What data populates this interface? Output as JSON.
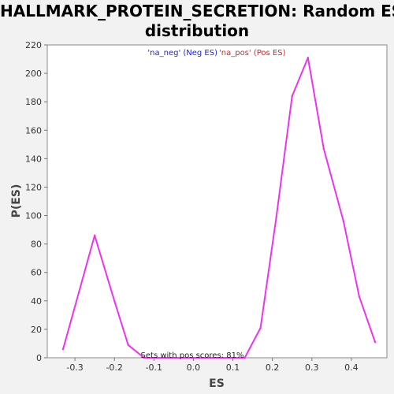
{
  "chart_data": {
    "type": "line",
    "title_line1": "HALLMARK_PROTEIN_SECRETION: Random ES",
    "title_line2": "distribution",
    "xlabel": "ES",
    "ylabel": "P(ES)",
    "xlim": [
      -0.37,
      0.49
    ],
    "ylim": [
      0,
      220
    ],
    "x_ticks": [
      -0.3,
      -0.2,
      -0.1,
      0.0,
      0.1,
      0.2,
      0.3,
      0.4
    ],
    "x_tick_labels": [
      "-0.3",
      "-0.2",
      "-0.1",
      "0.0",
      "0.1",
      "0.2",
      "0.3",
      "0.4"
    ],
    "y_ticks": [
      0,
      20,
      40,
      60,
      80,
      100,
      120,
      140,
      160,
      180,
      200,
      220
    ],
    "y_tick_labels": [
      "0",
      "20",
      "40",
      "60",
      "80",
      "100",
      "120",
      "140",
      "160",
      "180",
      "200",
      "220"
    ],
    "grid": false,
    "legend": {
      "placement": "top-center",
      "neg_label": "'na_neg' (Neg ES)",
      "pos_label": "'na_pos' (Pos ES)"
    },
    "annotation": "Sets with pos scores: 81%",
    "series": [
      {
        "color": "#ee33ee",
        "x": [
          -0.33,
          -0.29,
          -0.25,
          -0.2,
          -0.165,
          -0.125,
          0.13,
          0.17,
          0.21,
          0.25,
          0.29,
          0.33,
          0.38,
          0.42,
          0.46
        ],
        "y": [
          6,
          46,
          86,
          40,
          9,
          0,
          0,
          21,
          99,
          184,
          211,
          147,
          96,
          43,
          11
        ]
      }
    ],
    "colors": {
      "background": "#f2f2f2",
      "plot_background": "#ffffff",
      "line": "#ee33ee"
    }
  }
}
